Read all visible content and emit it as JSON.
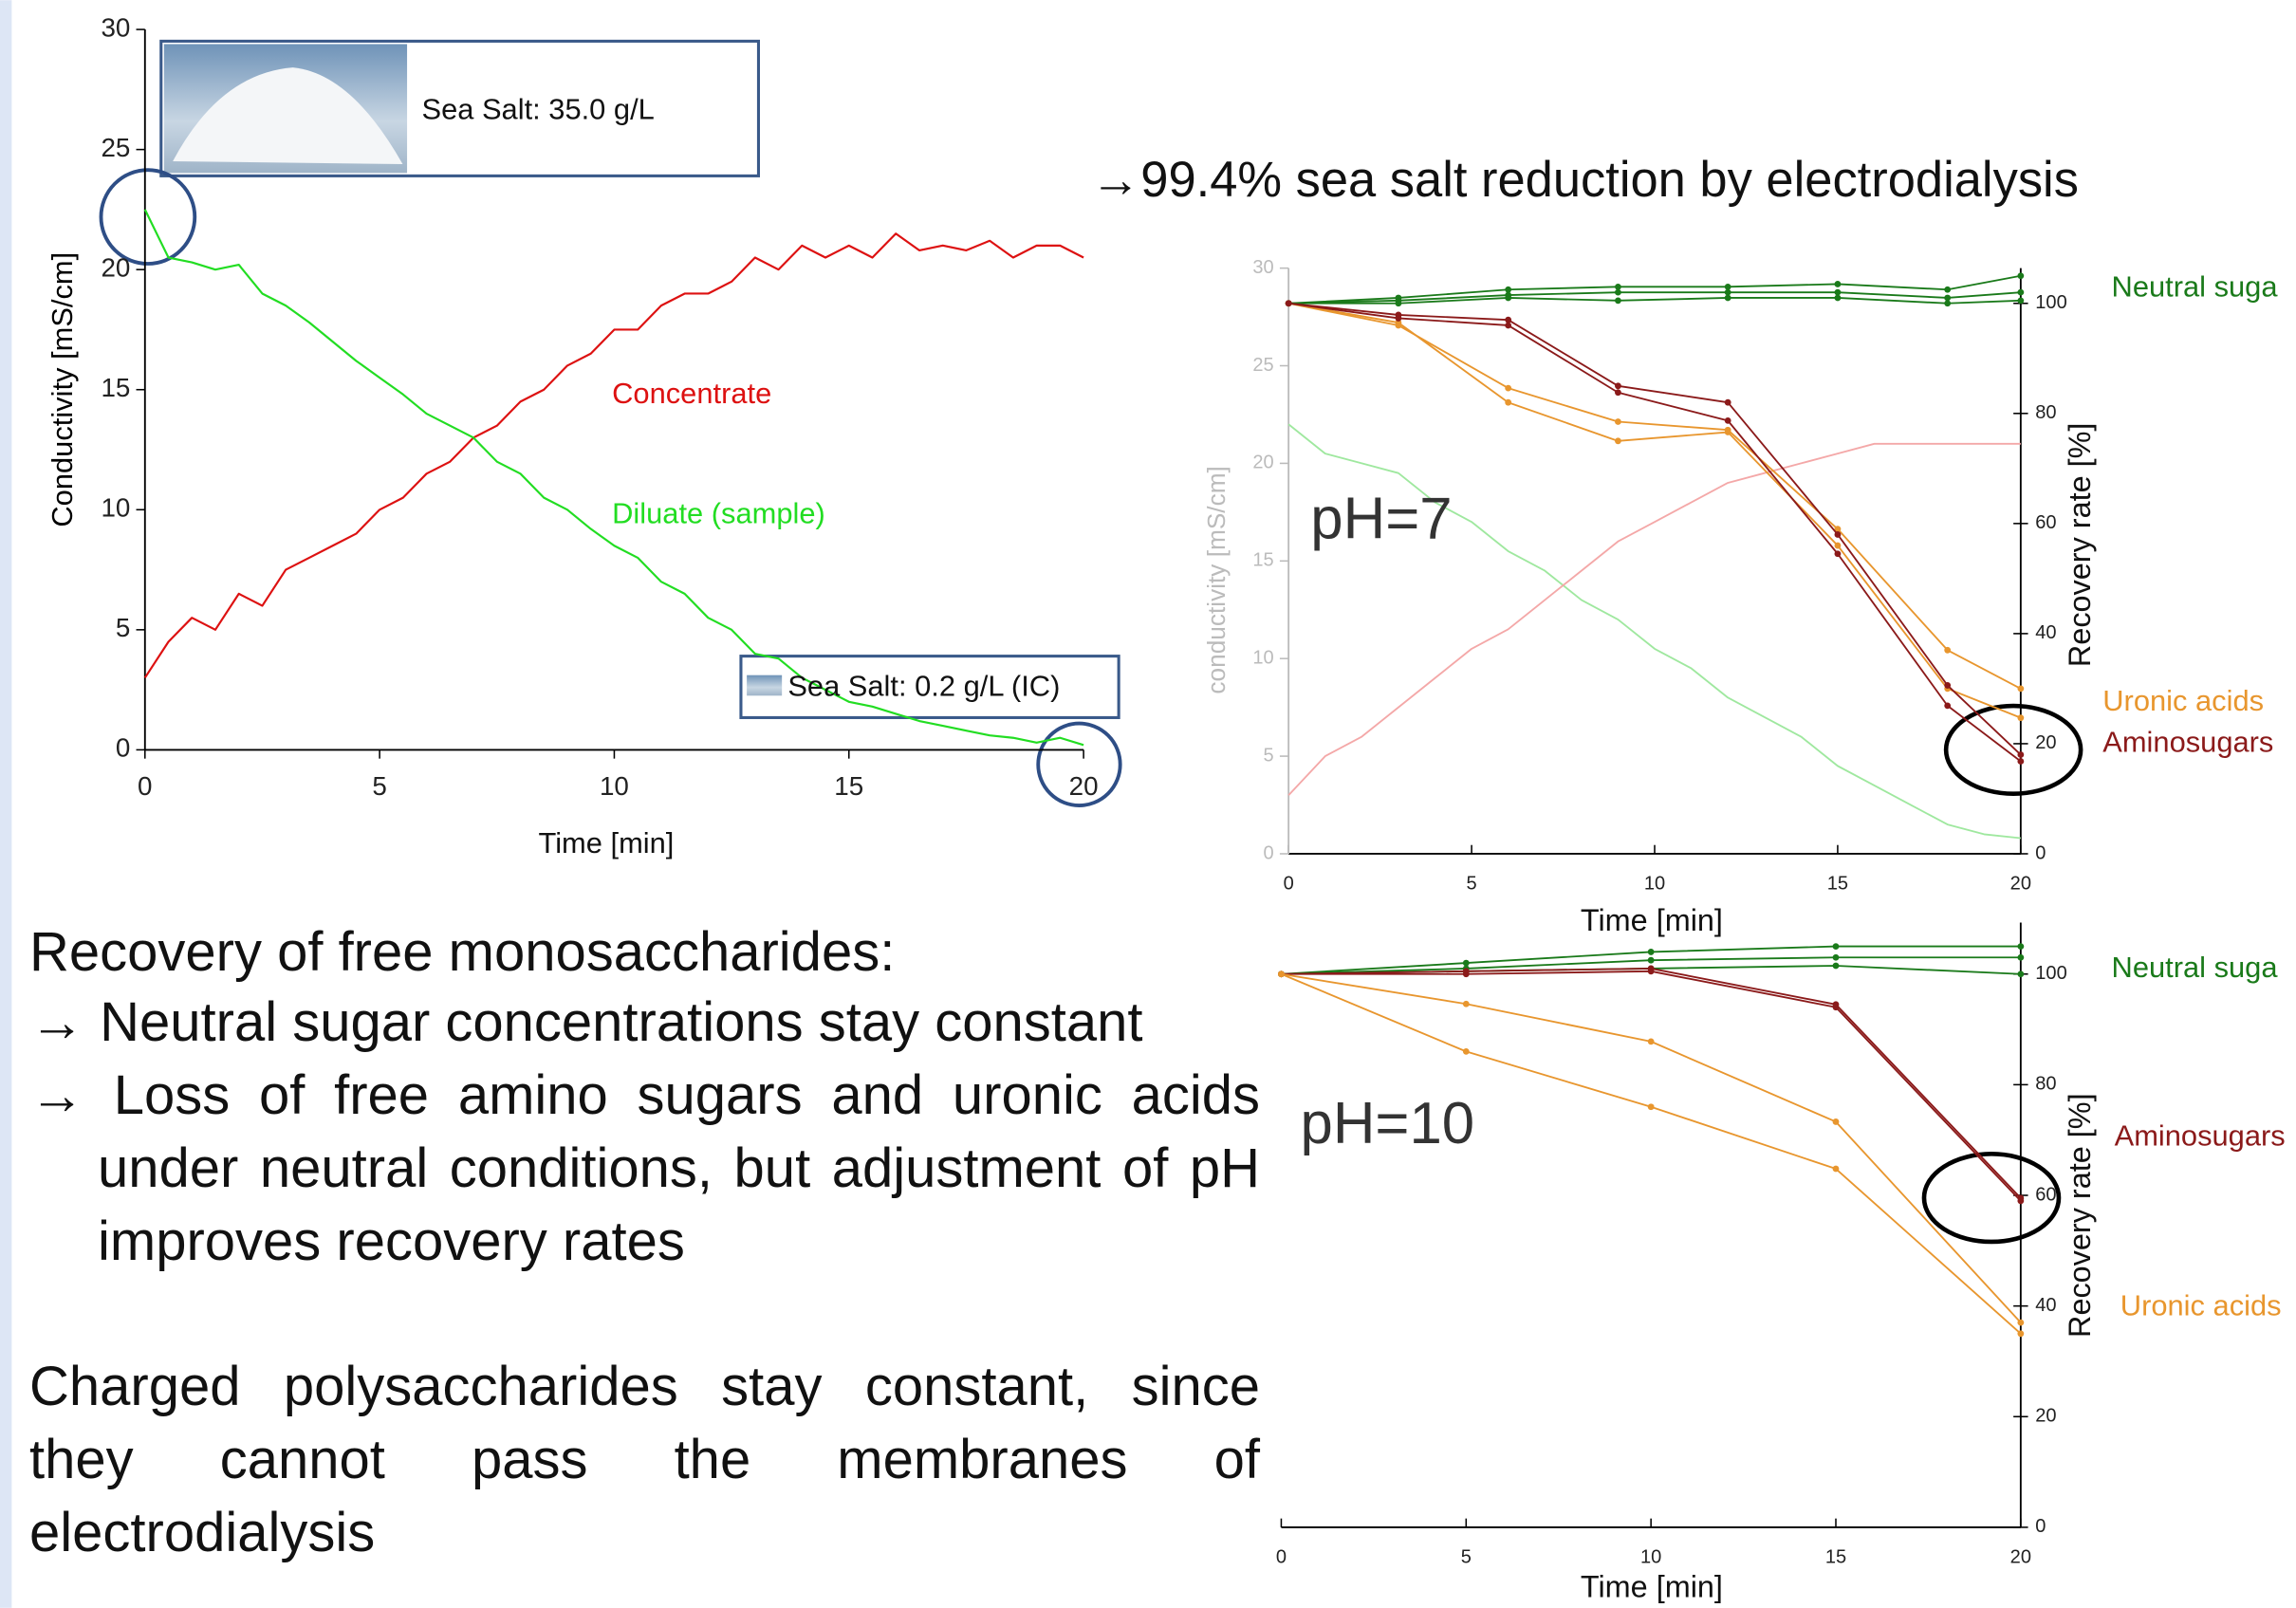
{
  "headline": "→99.4% sea salt reduction by electrodialysis",
  "text": {
    "heading": "Recovery of free monosaccharides:",
    "bullets": [
      "→ Neutral sugar concentrations stay constant",
      "→ Loss of free amino sugars and uronic acids under neutral conditions, but adjustment of pH improves recovery rates"
    ],
    "paragraph": "Charged polysaccharides stay constant, since they cannot pass the membranes of electrodialysis"
  },
  "chart_data": [
    {
      "type": "line",
      "xlabel": "Time [min]",
      "ylabel": "Conductivity [mS/cm]",
      "xlim": [
        0,
        20
      ],
      "xticks": [
        0,
        5,
        10,
        15,
        20
      ],
      "ylim": [
        0,
        30
      ],
      "yticks": [
        0,
        5,
        10,
        15,
        20,
        25,
        30
      ],
      "annotations": [
        "Sea Salt: 35.0 g/L",
        "Sea Salt: 0.2 g/L (IC)"
      ],
      "x": [
        0,
        0.5,
        1,
        1.5,
        2,
        2.5,
        3,
        3.5,
        4,
        4.5,
        5,
        5.5,
        6,
        6.5,
        7,
        7.5,
        8,
        8.5,
        9,
        9.5,
        10,
        10.5,
        11,
        11.5,
        12,
        12.5,
        13,
        13.5,
        14,
        14.5,
        15,
        15.5,
        16,
        16.5,
        17,
        17.5,
        18,
        18.5,
        19,
        19.5,
        20
      ],
      "series": [
        {
          "name": "Concentrate",
          "color": "#dd1111",
          "values": [
            3,
            4.5,
            5.5,
            5,
            6.5,
            6,
            7.5,
            8,
            8.5,
            9,
            10,
            10.5,
            11.5,
            12,
            13,
            13.5,
            14.5,
            15,
            16,
            16.5,
            17.5,
            17.5,
            18.5,
            19,
            19,
            19.5,
            20.5,
            20,
            21,
            20.5,
            21,
            20.5,
            21.5,
            20.8,
            21,
            20.8,
            21.2,
            20.5,
            21,
            21,
            20.5
          ]
        },
        {
          "name": "Diluate (sample)",
          "color": "#22dd22",
          "values": [
            22.5,
            20.5,
            20.3,
            20,
            20.2,
            19,
            18.5,
            17.8,
            17,
            16.2,
            15.5,
            14.8,
            14,
            13.5,
            13,
            12,
            11.5,
            10.5,
            10,
            9.2,
            8.5,
            8,
            7,
            6.5,
            5.5,
            5,
            4,
            3.8,
            3,
            2.5,
            2,
            1.8,
            1.5,
            1.2,
            1,
            0.8,
            0.6,
            0.5,
            0.3,
            0.5,
            0.2
          ]
        }
      ]
    },
    {
      "type": "line",
      "xlabel": "Time [min]",
      "ylabel": "conductivity [mS/cm]",
      "y2label": "Recovery rate [%]",
      "xlim": [
        0,
        20
      ],
      "xticks": [
        0,
        5,
        10,
        15,
        20
      ],
      "ylim": [
        0,
        30
      ],
      "yticks": [
        0,
        5,
        10,
        15,
        20,
        25,
        30
      ],
      "y2lim": [
        0,
        106.4
      ],
      "y2ticks": [
        0,
        20,
        40,
        60,
        80,
        100
      ],
      "annotations": [
        "pH=7"
      ],
      "series": [
        {
          "color": "#9fe89f",
          "x": [
            0,
            1,
            2,
            3,
            4,
            5,
            6,
            7,
            8,
            9,
            10,
            11,
            12,
            13,
            14,
            15,
            16,
            17,
            18,
            19,
            20
          ],
          "values": [
            22,
            20.5,
            20,
            19.5,
            18,
            17,
            15.5,
            14.5,
            13,
            12,
            10.5,
            9.5,
            8,
            7,
            6,
            4.5,
            3.5,
            2.5,
            1.5,
            1,
            0.8
          ]
        },
        {
          "color": "#f4a8a8",
          "x": [
            0,
            1,
            2,
            3,
            4,
            5,
            6,
            7,
            8,
            9,
            10,
            11,
            12,
            13,
            14,
            15,
            16,
            17,
            18,
            19,
            20
          ],
          "values": [
            3,
            5,
            6,
            7.5,
            9,
            10.5,
            11.5,
            13,
            14.5,
            16,
            17,
            18,
            19,
            19.5,
            20,
            20.5,
            21,
            21,
            21,
            21,
            21
          ]
        },
        {
          "name": "Neutral suga",
          "color": "#1a7a1a",
          "axis": "y2",
          "x": [
            0,
            3,
            6,
            9,
            12,
            15,
            18,
            20
          ],
          "values": [
            100,
            101,
            102.5,
            103,
            103,
            103.5,
            102.5,
            105
          ]
        },
        {
          "color": "#1a7a1a",
          "axis": "y2",
          "x": [
            0,
            3,
            6,
            9,
            12,
            15,
            18,
            20
          ],
          "values": [
            100,
            100.5,
            101.5,
            102,
            102,
            102,
            101,
            102
          ]
        },
        {
          "color": "#1a7a1a",
          "axis": "y2",
          "x": [
            0,
            3,
            6,
            9,
            12,
            15,
            18,
            20
          ],
          "values": [
            100,
            100,
            101,
            100.5,
            101,
            101,
            100,
            100.5
          ]
        },
        {
          "name": "Uronic acids",
          "color": "#e8962e",
          "axis": "y2",
          "x": [
            0,
            3,
            6,
            9,
            12,
            15,
            18,
            20
          ],
          "values": [
            100,
            96,
            84.6,
            78.5,
            77,
            59,
            37,
            30
          ]
        },
        {
          "color": "#e8962e",
          "axis": "y2",
          "x": [
            0,
            3,
            6,
            9,
            12,
            15,
            18,
            20
          ],
          "values": [
            100,
            96.5,
            82,
            75,
            76.6,
            56,
            30,
            24.7
          ]
        },
        {
          "name": "Aminosugars",
          "color": "#8b1a1a",
          "axis": "y2",
          "x": [
            0,
            3,
            6,
            9,
            12,
            15,
            18,
            20
          ],
          "values": [
            100,
            97.9,
            97,
            85,
            82,
            58,
            30.6,
            18
          ]
        },
        {
          "color": "#8b1a1a",
          "axis": "y2",
          "x": [
            0,
            3,
            6,
            9,
            12,
            15,
            18,
            20
          ],
          "values": [
            100,
            97.3,
            96,
            83.8,
            78.7,
            54.5,
            26.9,
            16.8
          ]
        }
      ]
    },
    {
      "type": "line",
      "xlabel": "Time [min]",
      "y2label": "Recovery rate [%]",
      "xlim": [
        0,
        20
      ],
      "xticks": [
        0,
        5,
        10,
        15,
        20
      ],
      "y2lim": [
        0,
        109.3
      ],
      "y2ticks": [
        0,
        20,
        40,
        60,
        80,
        100
      ],
      "annotations": [
        "pH=10"
      ],
      "series": [
        {
          "name": "Neutral suga",
          "color": "#1a7a1a",
          "axis": "y2",
          "x": [
            0,
            5,
            10,
            15,
            20
          ],
          "values": [
            100,
            102,
            104,
            105,
            105
          ]
        },
        {
          "color": "#1a7a1a",
          "axis": "y2",
          "x": [
            0,
            5,
            10,
            15,
            20
          ],
          "values": [
            100,
            101,
            102.5,
            103,
            103
          ]
        },
        {
          "color": "#1a7a1a",
          "axis": "y2",
          "x": [
            0,
            5,
            10,
            15,
            20
          ],
          "values": [
            100,
            100.5,
            101,
            101.5,
            100
          ]
        },
        {
          "name": "Aminosugars",
          "color": "#8b1a1a",
          "axis": "y2",
          "x": [
            0,
            5,
            10,
            15,
            20
          ],
          "values": [
            100,
            100.5,
            101,
            94.5,
            59.5
          ]
        },
        {
          "color": "#8b1a1a",
          "axis": "y2",
          "x": [
            0,
            5,
            10,
            15,
            20
          ],
          "values": [
            100,
            100,
            100.5,
            94,
            59
          ]
        },
        {
          "name": "Uronic acids",
          "color": "#e8962e",
          "axis": "y2",
          "x": [
            0,
            5,
            10,
            15,
            20
          ],
          "values": [
            100,
            94.6,
            87.8,
            73.3,
            37
          ]
        },
        {
          "color": "#e8962e",
          "axis": "y2",
          "x": [
            0,
            5,
            10,
            15,
            20
          ],
          "values": [
            100,
            86,
            76,
            64.8,
            35
          ]
        }
      ]
    }
  ]
}
